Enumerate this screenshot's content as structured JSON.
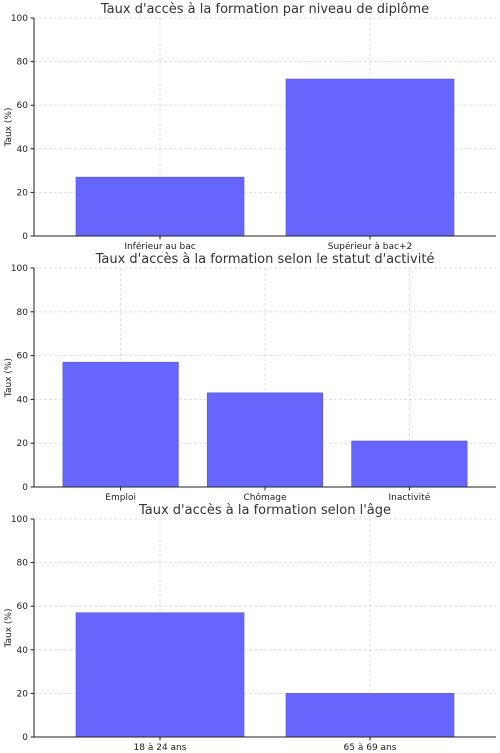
{
  "style": {
    "bar_color": "#6666ff",
    "bar_edge": "#5555cc"
  },
  "chart_data": [
    {
      "type": "bar",
      "title": "Taux d'accès à la formation par niveau de diplôme",
      "ylabel": "Taux (%)",
      "xlabel": "",
      "categories": [
        "Inférieur au bac",
        "Supérieur à bac+2"
      ],
      "values": [
        27,
        72
      ],
      "ylim": [
        0,
        100
      ],
      "yticks": [
        0,
        20,
        40,
        60,
        80,
        100
      ],
      "grid": true
    },
    {
      "type": "bar",
      "title": "Taux d'accès à la formation selon le statut d'activité",
      "ylabel": "Taux (%)",
      "xlabel": "",
      "categories": [
        "Emploi",
        "Chômage",
        "Inactivité"
      ],
      "values": [
        57,
        43,
        21
      ],
      "ylim": [
        0,
        100
      ],
      "yticks": [
        0,
        20,
        40,
        60,
        80,
        100
      ],
      "grid": true
    },
    {
      "type": "bar",
      "title": "Taux d'accès à la formation selon l'âge",
      "ylabel": "Taux (%)",
      "xlabel": "",
      "categories": [
        "18 à 24 ans",
        "65 à 69 ans"
      ],
      "values": [
        57,
        20
      ],
      "ylim": [
        0,
        100
      ],
      "yticks": [
        0,
        20,
        40,
        60,
        80,
        100
      ],
      "grid": true
    }
  ]
}
